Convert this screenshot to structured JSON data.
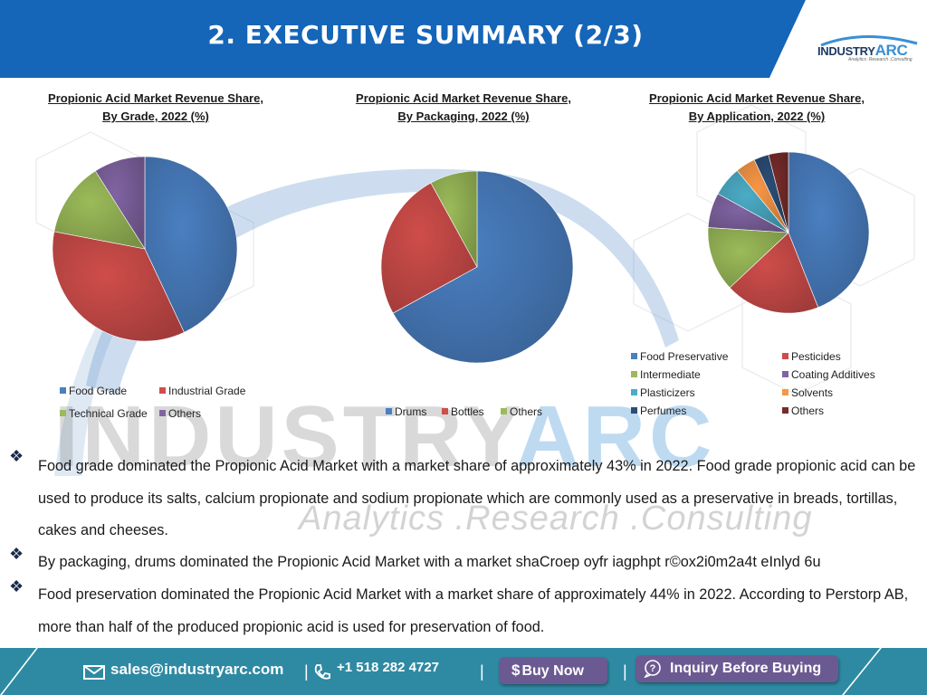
{
  "header": {
    "title": "2. EXECUTIVE SUMMARY (2/3)",
    "logo_main": "INDUSTRY",
    "logo_arc": "ARC",
    "logo_tagline": "Analytics .Research .Consulting"
  },
  "watermark": {
    "main": "INDUSTRY",
    "arc": "ARC",
    "sub": "Analytics .Research .Consulting"
  },
  "chart_titles": {
    "grade_line1": "Propionic Acid Market Revenue Share,",
    "grade_line2": "By Grade, 2022 (%)",
    "packaging_line1": "Propionic Acid Market Revenue Share,",
    "packaging_line2": "By Packaging, 2022 (%)",
    "application_line1": "Propionic Acid Market Revenue Share,",
    "application_line2": "By Application, 2022 (%)"
  },
  "chart_data": [
    {
      "type": "pie",
      "title": "Propionic Acid Market Revenue Share, By Grade, 2022 (%)",
      "categories": [
        "Food Grade",
        "Industrial Grade",
        "Technical Grade",
        "Others"
      ],
      "values": [
        43,
        35,
        13,
        9
      ],
      "colors": [
        "#4a7fc1",
        "#cf4d4a",
        "#9bbb59",
        "#8064a2"
      ]
    },
    {
      "type": "pie",
      "title": "Propionic Acid Market Revenue Share, By Packaging, 2022 (%)",
      "categories": [
        "Drums",
        "Bottles",
        "Others"
      ],
      "values": [
        67,
        25,
        8
      ],
      "colors": [
        "#4a7fc1",
        "#cf4d4a",
        "#9bbb59"
      ]
    },
    {
      "type": "pie",
      "title": "Propionic Acid Market Revenue Share, By Application, 2022 (%)",
      "categories": [
        "Food Preservative",
        "Pesticides",
        "Intermediate",
        "Coating Additives",
        "Plasticizers",
        "Solvents",
        "Perfumes",
        "Others"
      ],
      "values": [
        44,
        19,
        13,
        7,
        6,
        4,
        3,
        4
      ],
      "colors": [
        "#4a7fc1",
        "#cf4d4a",
        "#9bbb59",
        "#8064a2",
        "#4bacc6",
        "#f79646",
        "#2c4d75",
        "#772c2a"
      ]
    }
  ],
  "bullets": [
    "Food grade dominated the Propionic Acid Market with a market share of approximately 43% in 2022. Food grade propionic acid can be used to produce its salts, calcium propionate and sodium propionate which are commonly used as a preservative in breads, tortillas, cakes and cheeses.",
    "By packaging, drums dominated the Propionic Acid Market with a market shaCroep oyfr iagphpt r©ox2i0m2a4t eInlyd 6u",
    "Food preservation dominated the Propionic Acid Market with a market share of approximately 44% in 2022. According to Perstorp AB, more than half of the produced propionic acid is used for preservation of food."
  ],
  "footer": {
    "email": "sales@industryarc.com",
    "phone": "+1 518 282 4727",
    "separator": "|",
    "buy_now": "Buy Now",
    "buy_symbol": "$",
    "inquiry": "Inquiry Before Buying"
  },
  "colors": {
    "header_blue": "#1565b8",
    "footer_teal": "#2e8aa3",
    "button_purple": "#6b5a92"
  }
}
